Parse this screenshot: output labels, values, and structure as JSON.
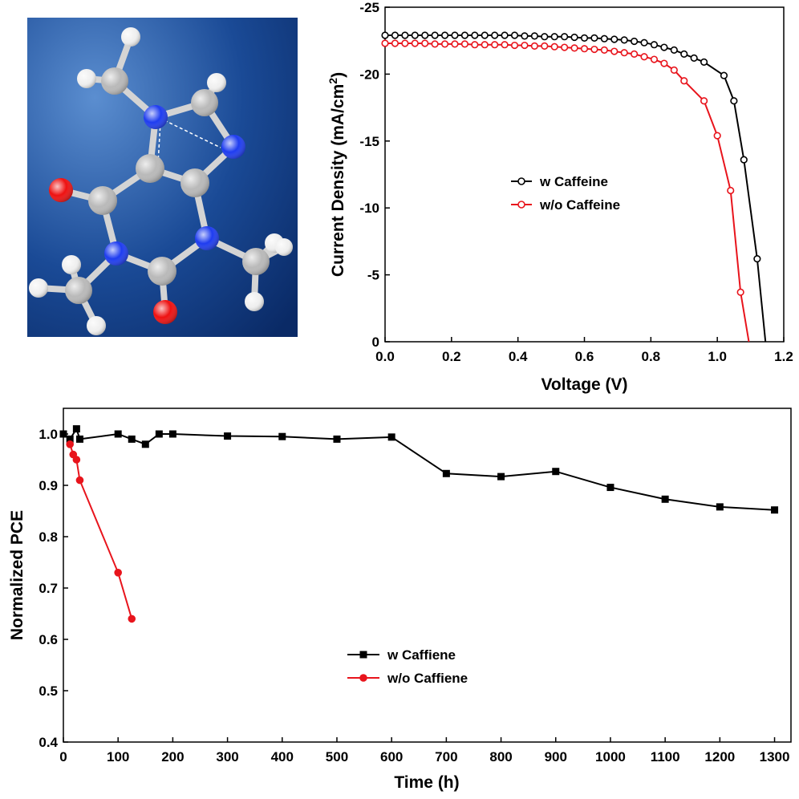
{
  "molecule": {
    "background_colors": [
      "#5b8ed0",
      "#1a4a96",
      "#0a2a66"
    ],
    "atom_colors": {
      "carbon": "#b9b9b9",
      "hydrogen": "#f0f0f0",
      "nitrogen": "#1e3cf0",
      "oxygen": "#ee1111"
    }
  },
  "chart_data": [
    {
      "type": "line",
      "xlabel": "Voltage (V)",
      "ylabel_main": "Current Density (mA/cm",
      "ylabel_sup": "2",
      "ylabel_end": ")",
      "xlim": [
        0,
        1.2
      ],
      "ylim": [
        0,
        -25
      ],
      "xticks": [
        0.0,
        0.2,
        0.4,
        0.6,
        0.8,
        1.0,
        1.2
      ],
      "xtick_labels": [
        "0.0",
        "0.2",
        "0.4",
        "0.6",
        "0.8",
        "1.0",
        "1.2"
      ],
      "yticks": [
        -25,
        -20,
        -15,
        -10,
        -5,
        0
      ],
      "ytick_labels": [
        "-25",
        "-20",
        "-15",
        "-10",
        "-5",
        "0"
      ],
      "grid": false,
      "legend_position": "center-right",
      "series": [
        {
          "name": "w Caffeine",
          "color": "#000000",
          "marker": "open-circle",
          "x": [
            0.0,
            0.03,
            0.06,
            0.09,
            0.12,
            0.15,
            0.18,
            0.21,
            0.24,
            0.27,
            0.3,
            0.33,
            0.36,
            0.39,
            0.42,
            0.45,
            0.48,
            0.51,
            0.54,
            0.57,
            0.6,
            0.63,
            0.66,
            0.69,
            0.72,
            0.75,
            0.78,
            0.81,
            0.84,
            0.87,
            0.9,
            0.93,
            0.96,
            1.02,
            1.05,
            1.08,
            1.12
          ],
          "y": [
            -22.9,
            -22.9,
            -22.9,
            -22.9,
            -22.9,
            -22.9,
            -22.9,
            -22.9,
            -22.9,
            -22.9,
            -22.9,
            -22.9,
            -22.9,
            -22.9,
            -22.85,
            -22.85,
            -22.8,
            -22.8,
            -22.8,
            -22.75,
            -22.7,
            -22.7,
            -22.65,
            -22.6,
            -22.55,
            -22.45,
            -22.35,
            -22.2,
            -22.0,
            -21.8,
            -21.5,
            -21.2,
            -20.9,
            -19.9,
            -18.0,
            -13.6,
            -6.2
          ],
          "end_point": [
            1.145,
            0
          ]
        },
        {
          "name": "w/o Caffeine",
          "color": "#e8141c",
          "marker": "open-circle",
          "x": [
            0.0,
            0.03,
            0.06,
            0.09,
            0.12,
            0.15,
            0.18,
            0.21,
            0.24,
            0.27,
            0.3,
            0.33,
            0.36,
            0.39,
            0.42,
            0.45,
            0.48,
            0.51,
            0.54,
            0.57,
            0.6,
            0.63,
            0.66,
            0.69,
            0.72,
            0.75,
            0.78,
            0.81,
            0.84,
            0.87,
            0.9,
            0.96,
            1.0,
            1.04,
            1.07
          ],
          "y": [
            -22.3,
            -22.3,
            -22.3,
            -22.3,
            -22.3,
            -22.25,
            -22.25,
            -22.25,
            -22.25,
            -22.2,
            -22.2,
            -22.2,
            -22.2,
            -22.15,
            -22.15,
            -22.1,
            -22.1,
            -22.05,
            -22.0,
            -21.95,
            -21.9,
            -21.85,
            -21.8,
            -21.7,
            -21.6,
            -21.5,
            -21.3,
            -21.1,
            -20.8,
            -20.3,
            -19.5,
            -18.0,
            -15.4,
            -11.3,
            -3.7
          ],
          "end_point": [
            1.095,
            0
          ]
        }
      ]
    },
    {
      "type": "line",
      "xlabel": "Time (h)",
      "ylabel": "Normalized PCE",
      "xlim": [
        0,
        1330
      ],
      "ylim": [
        0.4,
        1.05
      ],
      "xticks": [
        0,
        100,
        200,
        300,
        400,
        500,
        600,
        700,
        800,
        900,
        1000,
        1100,
        1200,
        1300
      ],
      "xtick_labels": [
        "0",
        "100",
        "200",
        "300",
        "400",
        "500",
        "600",
        "700",
        "800",
        "900",
        "1000",
        "1100",
        "1200",
        "1300"
      ],
      "yticks": [
        0.4,
        0.5,
        0.6,
        0.7,
        0.8,
        0.9,
        1.0
      ],
      "ytick_labels": [
        "0.4",
        "0.5",
        "0.6",
        "0.7",
        "0.8",
        "0.9",
        "1.0"
      ],
      "grid": false,
      "legend_position": "center-left",
      "series": [
        {
          "name": "w Caffiene",
          "color": "#000000",
          "marker": "square",
          "x": [
            0,
            12,
            24,
            30,
            100,
            125,
            150,
            175,
            200,
            300,
            400,
            500,
            600,
            700,
            800,
            900,
            1000,
            1100,
            1200,
            1300
          ],
          "y": [
            1.0,
            0.99,
            1.01,
            0.99,
            1.0,
            0.99,
            0.98,
            1.0,
            1.0,
            0.996,
            0.995,
            0.99,
            0.994,
            0.923,
            0.917,
            0.927,
            0.896,
            0.873,
            0.858,
            0.852
          ]
        },
        {
          "name": "w/o Caffiene",
          "color": "#e8141c",
          "marker": "circle",
          "x": [
            12,
            18,
            24,
            30,
            100,
            125
          ],
          "y": [
            0.98,
            0.96,
            0.95,
            0.91,
            0.73,
            0.64
          ]
        }
      ]
    }
  ]
}
